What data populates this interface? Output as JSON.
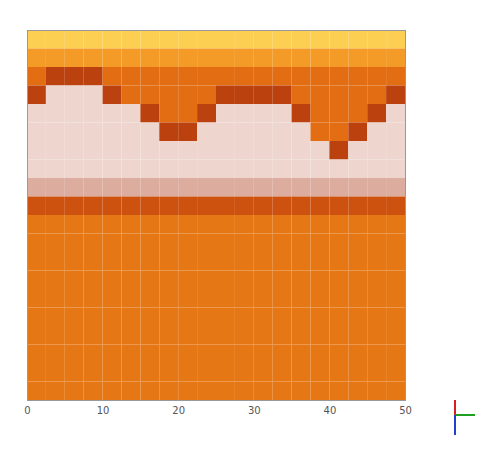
{
  "chart_data": {
    "type": "heatmap",
    "xlim": [
      0,
      50
    ],
    "xticks": [
      0,
      10,
      20,
      30,
      40,
      50
    ],
    "ylim": [
      0,
      50
    ],
    "tick_labels": "x",
    "zlim": [
      0,
      1
    ],
    "x_edges": [
      0,
      2.5,
      5,
      7.5,
      10,
      12.5,
      15,
      17.5,
      20,
      22.5,
      25,
      27.5,
      30,
      32.5,
      35,
      37.5,
      40,
      42.5,
      45,
      47.5,
      50
    ],
    "y_edges": [
      0,
      2.5,
      5,
      7.5,
      10,
      12.5,
      15,
      17.5,
      20,
      22.5,
      25,
      27.5,
      30,
      32.5,
      35,
      37.5,
      40,
      42.5,
      45,
      47.5,
      50
    ],
    "cells": [
      [
        0.95,
        0.95,
        0.95,
        0.95,
        0.95,
        0.95,
        0.95,
        0.95,
        0.95,
        0.95,
        0.95,
        0.95,
        0.95,
        0.95,
        0.95,
        0.95,
        0.95,
        0.95,
        0.95,
        0.95
      ],
      [
        0.8,
        0.8,
        0.8,
        0.8,
        0.8,
        0.8,
        0.8,
        0.8,
        0.8,
        0.8,
        0.8,
        0.8,
        0.8,
        0.8,
        0.8,
        0.8,
        0.8,
        0.8,
        0.8,
        0.8
      ],
      [
        0.6,
        0.35,
        0.35,
        0.35,
        0.6,
        0.6,
        0.6,
        0.6,
        0.6,
        0.6,
        0.6,
        0.6,
        0.6,
        0.6,
        0.6,
        0.6,
        0.6,
        0.6,
        0.6,
        0.6
      ],
      [
        0.35,
        0.05,
        0.05,
        0.05,
        0.35,
        0.6,
        0.6,
        0.6,
        0.6,
        0.6,
        0.35,
        0.35,
        0.35,
        0.35,
        0.6,
        0.6,
        0.6,
        0.6,
        0.6,
        0.35
      ],
      [
        0.05,
        0.05,
        0.05,
        0.05,
        0.05,
        0.05,
        0.35,
        0.6,
        0.6,
        0.35,
        0.05,
        0.05,
        0.05,
        0.05,
        0.35,
        0.6,
        0.6,
        0.6,
        0.35,
        0.05
      ],
      [
        0.05,
        0.05,
        0.05,
        0.05,
        0.05,
        0.05,
        0.05,
        0.35,
        0.35,
        0.05,
        0.05,
        0.05,
        0.05,
        0.05,
        0.05,
        0.6,
        0.6,
        0.35,
        0.05,
        0.05
      ],
      [
        0.05,
        0.05,
        0.05,
        0.05,
        0.05,
        0.05,
        0.05,
        0.05,
        0.05,
        0.05,
        0.05,
        0.05,
        0.05,
        0.05,
        0.05,
        0.05,
        0.35,
        0.05,
        0.05,
        0.05
      ],
      [
        0.05,
        0.05,
        0.05,
        0.05,
        0.05,
        0.05,
        0.05,
        0.05,
        0.05,
        0.05,
        0.05,
        0.05,
        0.05,
        0.05,
        0.05,
        0.05,
        0.05,
        0.05,
        0.05,
        0.05
      ],
      [
        0.1,
        0.1,
        0.1,
        0.1,
        0.1,
        0.1,
        0.1,
        0.1,
        0.1,
        0.1,
        0.1,
        0.1,
        0.1,
        0.1,
        0.1,
        0.1,
        0.1,
        0.1,
        0.1,
        0.1
      ],
      [
        0.45,
        0.45,
        0.45,
        0.45,
        0.45,
        0.45,
        0.45,
        0.45,
        0.45,
        0.45,
        0.45,
        0.45,
        0.45,
        0.45,
        0.45,
        0.45,
        0.45,
        0.45,
        0.45,
        0.45
      ],
      [
        0.65,
        0.65,
        0.65,
        0.65,
        0.65,
        0.65,
        0.65,
        0.65,
        0.65,
        0.65,
        0.65,
        0.65,
        0.65,
        0.65,
        0.65,
        0.65,
        0.65,
        0.65,
        0.65,
        0.65
      ],
      [
        0.65,
        0.65,
        0.65,
        0.65,
        0.65,
        0.65,
        0.65,
        0.65,
        0.65,
        0.65,
        0.65,
        0.65,
        0.65,
        0.65,
        0.65,
        0.65,
        0.65,
        0.65,
        0.65,
        0.65
      ],
      [
        0.65,
        0.65,
        0.65,
        0.65,
        0.65,
        0.65,
        0.65,
        0.65,
        0.65,
        0.65,
        0.65,
        0.65,
        0.65,
        0.65,
        0.65,
        0.65,
        0.65,
        0.65,
        0.65,
        0.65
      ],
      [
        0.65,
        0.65,
        0.65,
        0.65,
        0.65,
        0.65,
        0.65,
        0.65,
        0.65,
        0.65,
        0.65,
        0.65,
        0.65,
        0.65,
        0.65,
        0.65,
        0.65,
        0.65,
        0.65,
        0.65
      ],
      [
        0.65,
        0.65,
        0.65,
        0.65,
        0.65,
        0.65,
        0.65,
        0.65,
        0.65,
        0.65,
        0.65,
        0.65,
        0.65,
        0.65,
        0.65,
        0.65,
        0.65,
        0.65,
        0.65,
        0.65
      ],
      [
        0.65,
        0.65,
        0.65,
        0.65,
        0.65,
        0.65,
        0.65,
        0.65,
        0.65,
        0.65,
        0.65,
        0.65,
        0.65,
        0.65,
        0.65,
        0.65,
        0.65,
        0.65,
        0.65,
        0.65
      ],
      [
        0.65,
        0.65,
        0.65,
        0.65,
        0.65,
        0.65,
        0.65,
        0.65,
        0.65,
        0.65,
        0.65,
        0.65,
        0.65,
        0.65,
        0.65,
        0.65,
        0.65,
        0.65,
        0.65,
        0.65
      ],
      [
        0.65,
        0.65,
        0.65,
        0.65,
        0.65,
        0.65,
        0.65,
        0.65,
        0.65,
        0.65,
        0.65,
        0.65,
        0.65,
        0.65,
        0.65,
        0.65,
        0.65,
        0.65,
        0.65,
        0.65
      ],
      [
        0.65,
        0.65,
        0.65,
        0.65,
        0.65,
        0.65,
        0.65,
        0.65,
        0.65,
        0.65,
        0.65,
        0.65,
        0.65,
        0.65,
        0.65,
        0.65,
        0.65,
        0.65,
        0.65,
        0.65
      ],
      [
        0.65,
        0.65,
        0.65,
        0.65,
        0.65,
        0.65,
        0.65,
        0.65,
        0.65,
        0.65,
        0.65,
        0.65,
        0.65,
        0.65,
        0.65,
        0.65,
        0.65,
        0.65,
        0.65,
        0.65
      ]
    ]
  }
}
